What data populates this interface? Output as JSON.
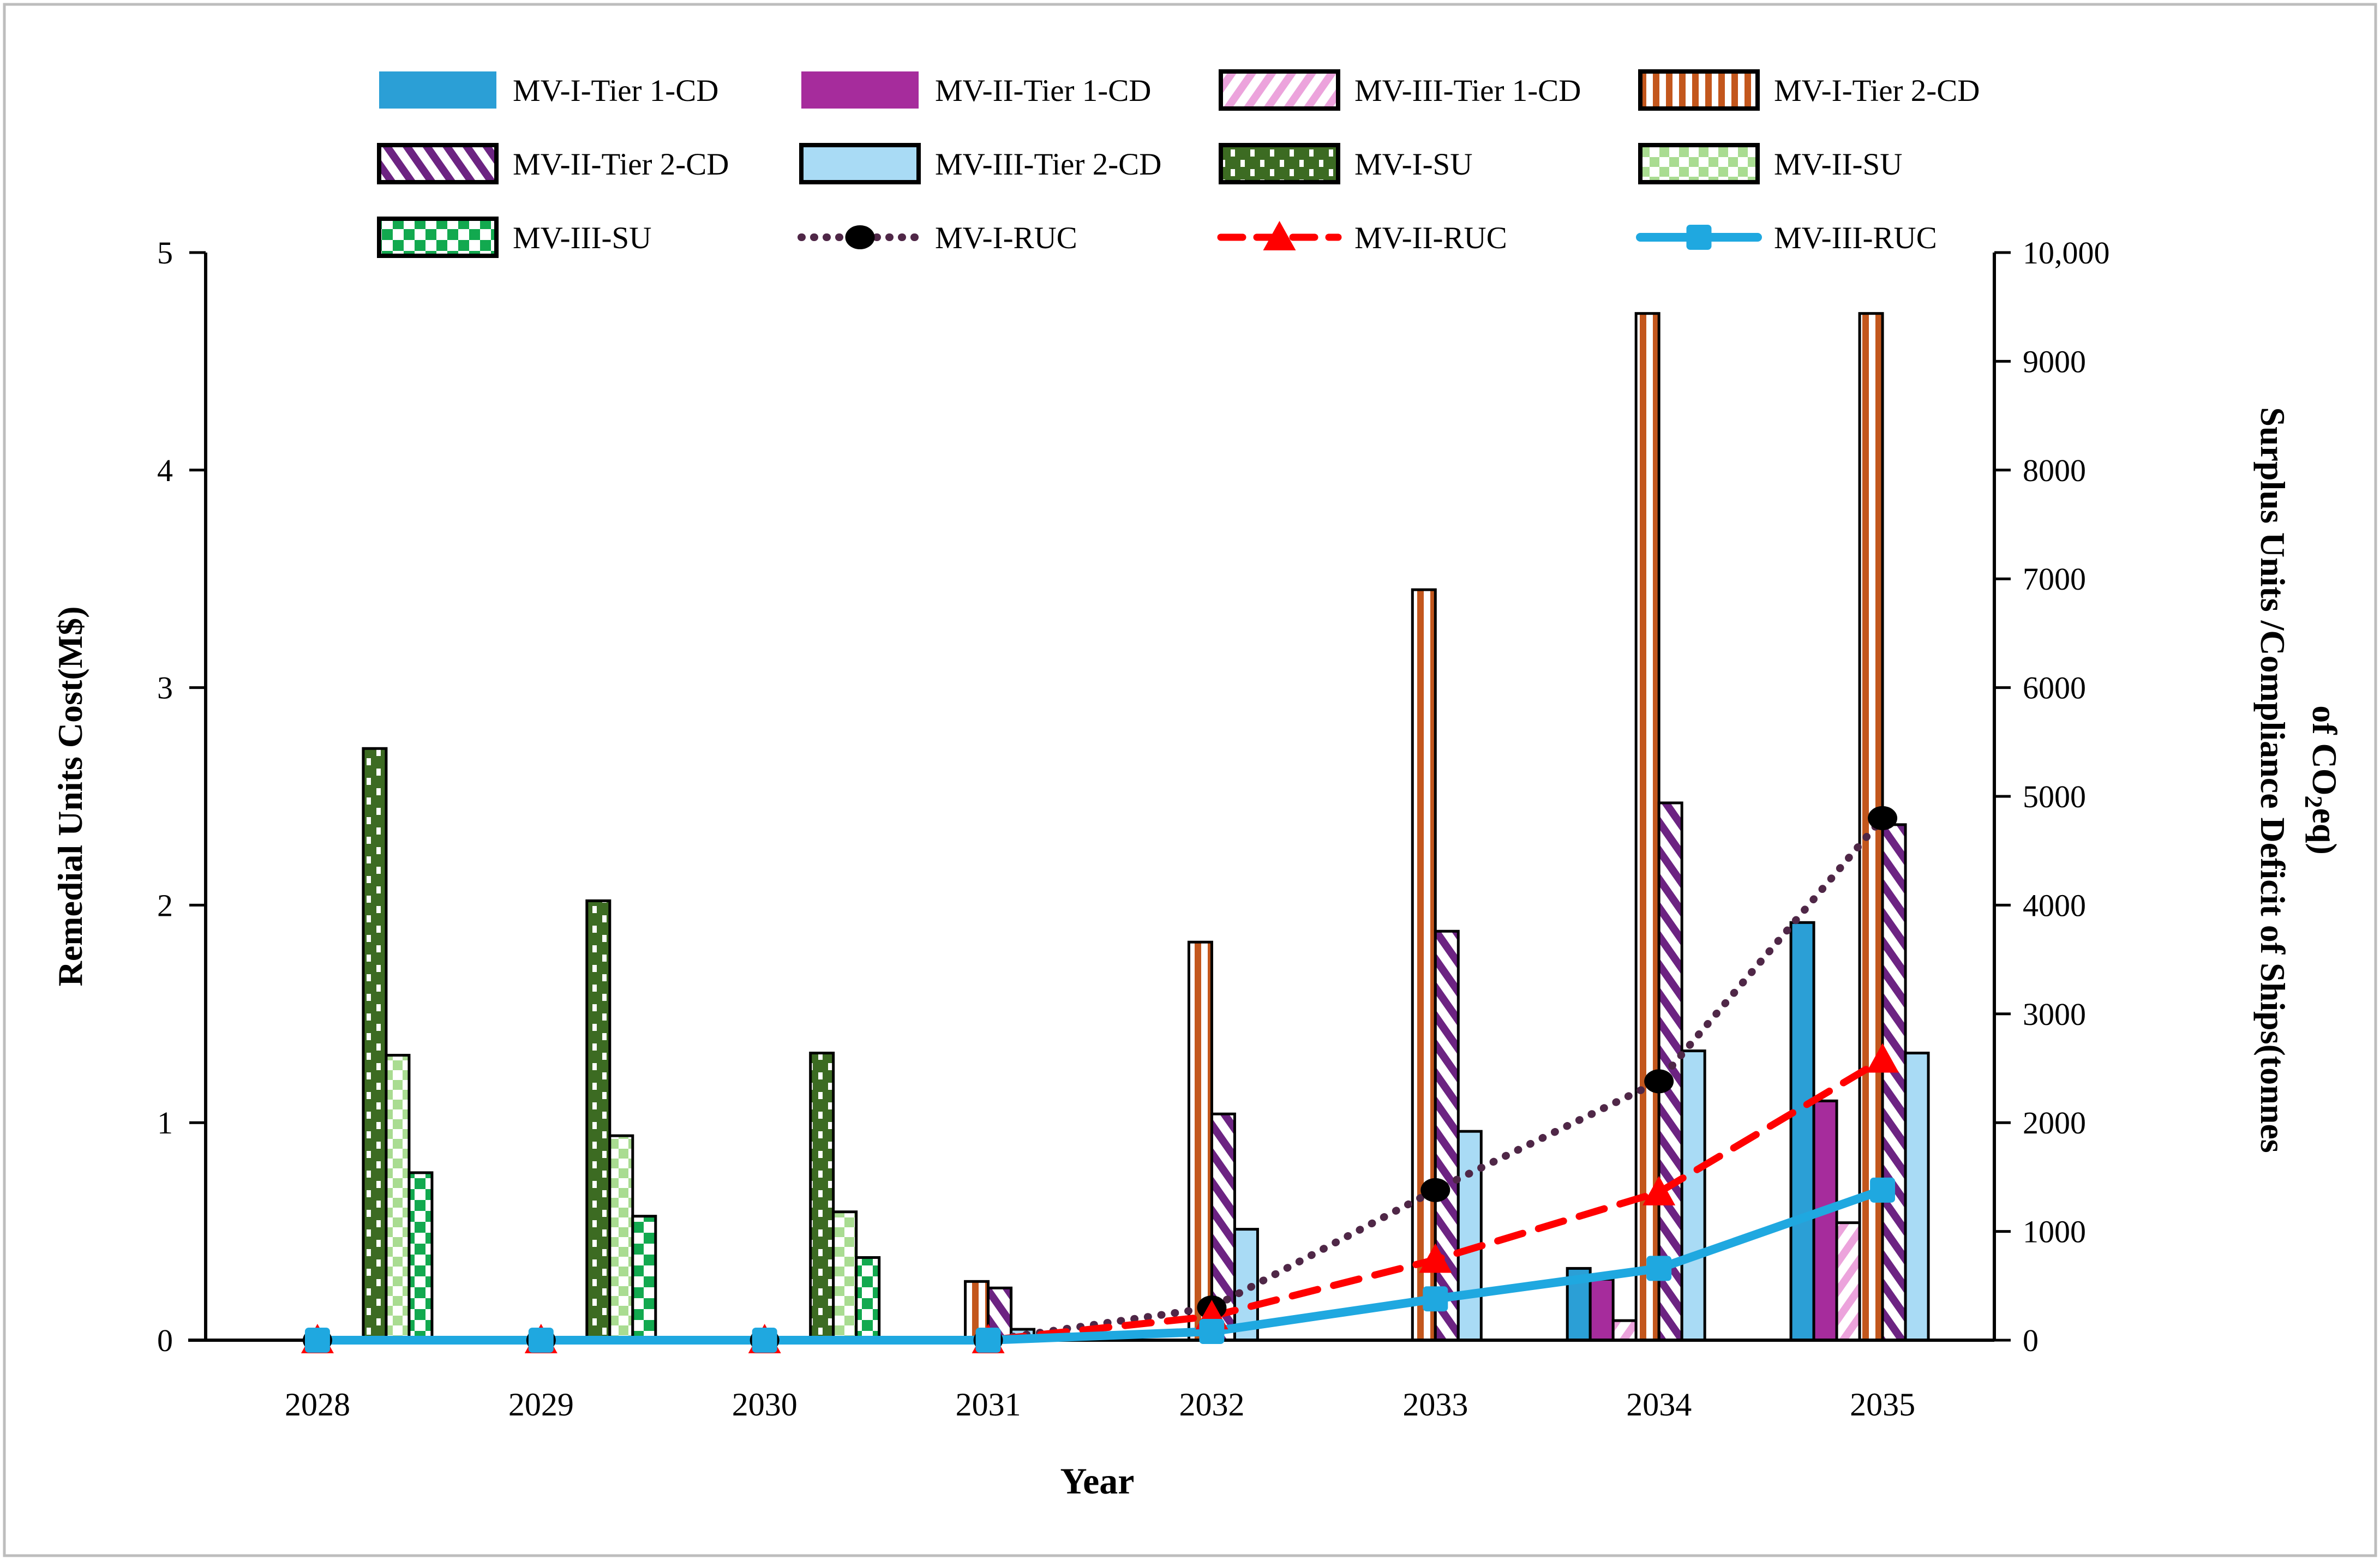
{
  "figure": {
    "border_color": "#bdbdbd",
    "background": "#ffffff"
  },
  "chart_data": {
    "type": "bar+line (dual axis)",
    "categories": [
      2028,
      2029,
      2030,
      2031,
      2032,
      2033,
      2034,
      2035
    ],
    "xlabel": "Year",
    "y_left": {
      "label": "Remedial Units Cost(M$)",
      "min": 0,
      "max": 5,
      "step": 1,
      "ticks": [
        "0",
        "1",
        "2",
        "3",
        "4",
        "5"
      ]
    },
    "y_right": {
      "label_line1": "Surplus Units /Compliance Deficit of Ships(tonnes",
      "label_line2_pre": "of CO",
      "label_line2_sub": "2",
      "label_line2_post": "eq)",
      "min": 0,
      "max": 10000,
      "step": 1000,
      "ticks": [
        "0",
        "1000",
        "2000",
        "3000",
        "4000",
        "5000",
        "6000",
        "7000",
        "8000",
        "9000",
        "10,000"
      ]
    },
    "bar_series": [
      {
        "name": "MV-I-Tier 1-CD",
        "slot": 1,
        "style": "solid",
        "color": "#2B9FD6",
        "border": false,
        "values": [
          0,
          0,
          0,
          0,
          0,
          0,
          0.33,
          1.92
        ]
      },
      {
        "name": "MV-II-Tier 1-CD",
        "slot": 2,
        "style": "solid",
        "color": "#A62C9C",
        "border": false,
        "values": [
          0,
          0,
          0,
          0,
          0,
          0,
          0.28,
          1.1
        ]
      },
      {
        "name": "MV-III-Tier 1-CD",
        "slot": 3,
        "style": "pink-diagonal",
        "color": "#ECA3DC",
        "border": true,
        "values": [
          0,
          0,
          0,
          0,
          0,
          0,
          0.09,
          0.54
        ]
      },
      {
        "name": "MV-I-Tier 2-CD",
        "slot": 4,
        "style": "orange-vertical",
        "color": "#C3571D",
        "border": true,
        "values": [
          0,
          0,
          0,
          0.27,
          1.83,
          3.45,
          4.72,
          4.72
        ]
      },
      {
        "name": "MV-II-Tier 2-CD",
        "slot": 5,
        "style": "purple-diagonal",
        "color": "#6C2382",
        "border": true,
        "values": [
          0,
          0,
          0,
          0.24,
          1.04,
          1.88,
          2.47,
          2.37
        ]
      },
      {
        "name": "MV-III-Tier 2-CD",
        "slot": 6,
        "style": "solid",
        "color": "#A9DBF5",
        "border": true,
        "values": [
          0,
          0,
          0,
          0.05,
          0.51,
          0.96,
          1.33,
          1.32
        ]
      },
      {
        "name": "MV-I-SU",
        "slot": 7,
        "style": "green-dots",
        "color": "#3C6B22",
        "border": true,
        "values": [
          2.72,
          2.02,
          1.32,
          0,
          0,
          0,
          0,
          0
        ]
      },
      {
        "name": "MV-II-SU",
        "slot": 8,
        "style": "lightgreen-check",
        "color": "#A9DC91",
        "border": true,
        "values": [
          1.31,
          0.94,
          0.59,
          0,
          0,
          0,
          0,
          0
        ]
      },
      {
        "name": "MV-III-SU",
        "slot": 9,
        "style": "green-check",
        "color": "#12A94F",
        "border": true,
        "values": [
          0.77,
          0.57,
          0.38,
          0,
          0,
          0,
          0,
          0
        ]
      }
    ],
    "line_series": [
      {
        "name": "MV-I-RUC",
        "color": "#4F2747",
        "dash": "dotted",
        "marker": "circle",
        "marker_color": "#000000",
        "values_tonnes": [
          0,
          0,
          0,
          0,
          300,
          1380,
          2380,
          4800
        ]
      },
      {
        "name": "MV-II-RUC",
        "color": "#FF0000",
        "dash": "dashed",
        "marker": "triangle",
        "marker_color": "#FF0000",
        "values_tonnes": [
          0,
          0,
          0,
          0,
          220,
          740,
          1360,
          2580
        ]
      },
      {
        "name": "MV-III-RUC",
        "color": "#1FA8E0",
        "dash": "solid",
        "marker": "square",
        "marker_color": "#1FA8E0",
        "values_tonnes": [
          0,
          0,
          0,
          0,
          80,
          380,
          660,
          1380
        ]
      }
    ],
    "legend_order": [
      "MV-I-Tier 1-CD",
      "MV-II-Tier 1-CD",
      "MV-III-Tier 1-CD",
      "MV-I-Tier 2-CD",
      "MV-II-Tier 2-CD",
      "MV-III-Tier 2-CD",
      "MV-I-SU",
      "MV-II-SU",
      "MV-III-SU",
      "MV-I-RUC",
      "MV-II-RUC",
      "MV-III-RUC"
    ],
    "legend_position": "top",
    "grid": "off"
  }
}
